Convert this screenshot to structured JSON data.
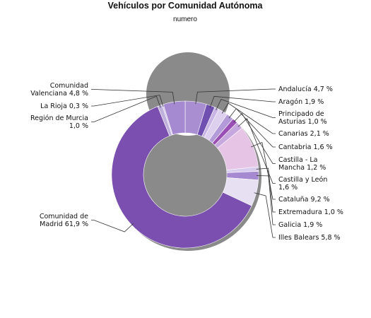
{
  "chart_data": {
    "type": "pie",
    "style": "donut",
    "title": "Vehículos por Comunidad Autónoma",
    "subtitle": "numero",
    "start_at": "12 o'clock",
    "direction": "clockwise",
    "slices": [
      {
        "label": "Andalucía 4,7 %",
        "value": 4.7,
        "color": "#a98fd1"
      },
      {
        "label": "Aragón 1,9 %",
        "value": 1.9,
        "color": "#6f4fb0"
      },
      {
        "label": "Principado de Asturias 1,0 %",
        "value": 1.0,
        "color": "#c9b6e6"
      },
      {
        "label": "Canarias 2,1 %",
        "value": 2.1,
        "color": "#ddd0ef"
      },
      {
        "label": "Cantabria 1,6 %",
        "value": 1.6,
        "color": "#b39ad9"
      },
      {
        "label": "Castilla - La Mancha 1,2 %",
        "value": 1.2,
        "color": "#9a4fb6"
      },
      {
        "label": "Castilla y León 1,6 %",
        "value": 1.6,
        "color": "#c7a8de"
      },
      {
        "label": "Cataluña 9,2 %",
        "value": 9.2,
        "color": "#e6c4e6"
      },
      {
        "label": "Extremadura 1,0 %",
        "value": 1.0,
        "color": "#d9cdef"
      },
      {
        "label": "Galicia 1,9 %",
        "value": 1.9,
        "color": "#a68ad1"
      },
      {
        "label": "Illes Balears 5,8 %",
        "value": 5.8,
        "color": "#e6e0f2"
      },
      {
        "label": "Comunidad de Madrid 61,9 %",
        "value": 61.9,
        "color": "#7a4fb0"
      },
      {
        "label": "Región de Murcia 1,0 %",
        "value": 1.0,
        "color": "#bfb1dc"
      },
      {
        "label": "La Rioja 0,3 %",
        "value": 0.3,
        "color": "#cdbfe6"
      },
      {
        "label": "Comunidad Valenciana 4,8 %",
        "value": 4.8,
        "color": "#a68ad1"
      }
    ],
    "label_lines": {
      "Andalucía 4,7 %": [
        "Andalucía 4,7 %"
      ],
      "Aragón 1,9 %": [
        "Aragón 1,9 %"
      ],
      "Principado de Asturias 1,0 %": [
        "Principado de",
        "Asturias 1,0 %"
      ],
      "Canarias 2,1 %": [
        "Canarias 2,1 %"
      ],
      "Cantabria 1,6 %": [
        "Cantabria 1,6 %"
      ],
      "Castilla - La Mancha 1,2 %": [
        "Castilla - La",
        "Mancha 1,2 %"
      ],
      "Castilla y León 1,6 %": [
        "Castilla y León",
        "1,6 %"
      ],
      "Cataluña 9,2 %": [
        "Cataluña 9,2 %"
      ],
      "Extremadura 1,0 %": [
        "Extremadura 1,0 %"
      ],
      "Galicia 1,9 %": [
        "Galicia 1,9 %"
      ],
      "Illes Balears 5,8 %": [
        "Illes Balears 5,8 %"
      ],
      "Comunidad de Madrid 61,9 %": [
        "Comunidad de",
        "Madrid 61,9 %"
      ],
      "Región de Murcia 1,0 %": [
        "Región de Murcia",
        "1,0 %"
      ],
      "La Rioja 0,3 %": [
        "La Rioja 0,3 %"
      ],
      "Comunidad Valenciana 4,8 %": [
        "Comunidad",
        "Valenciana 4,8 %"
      ]
    }
  }
}
